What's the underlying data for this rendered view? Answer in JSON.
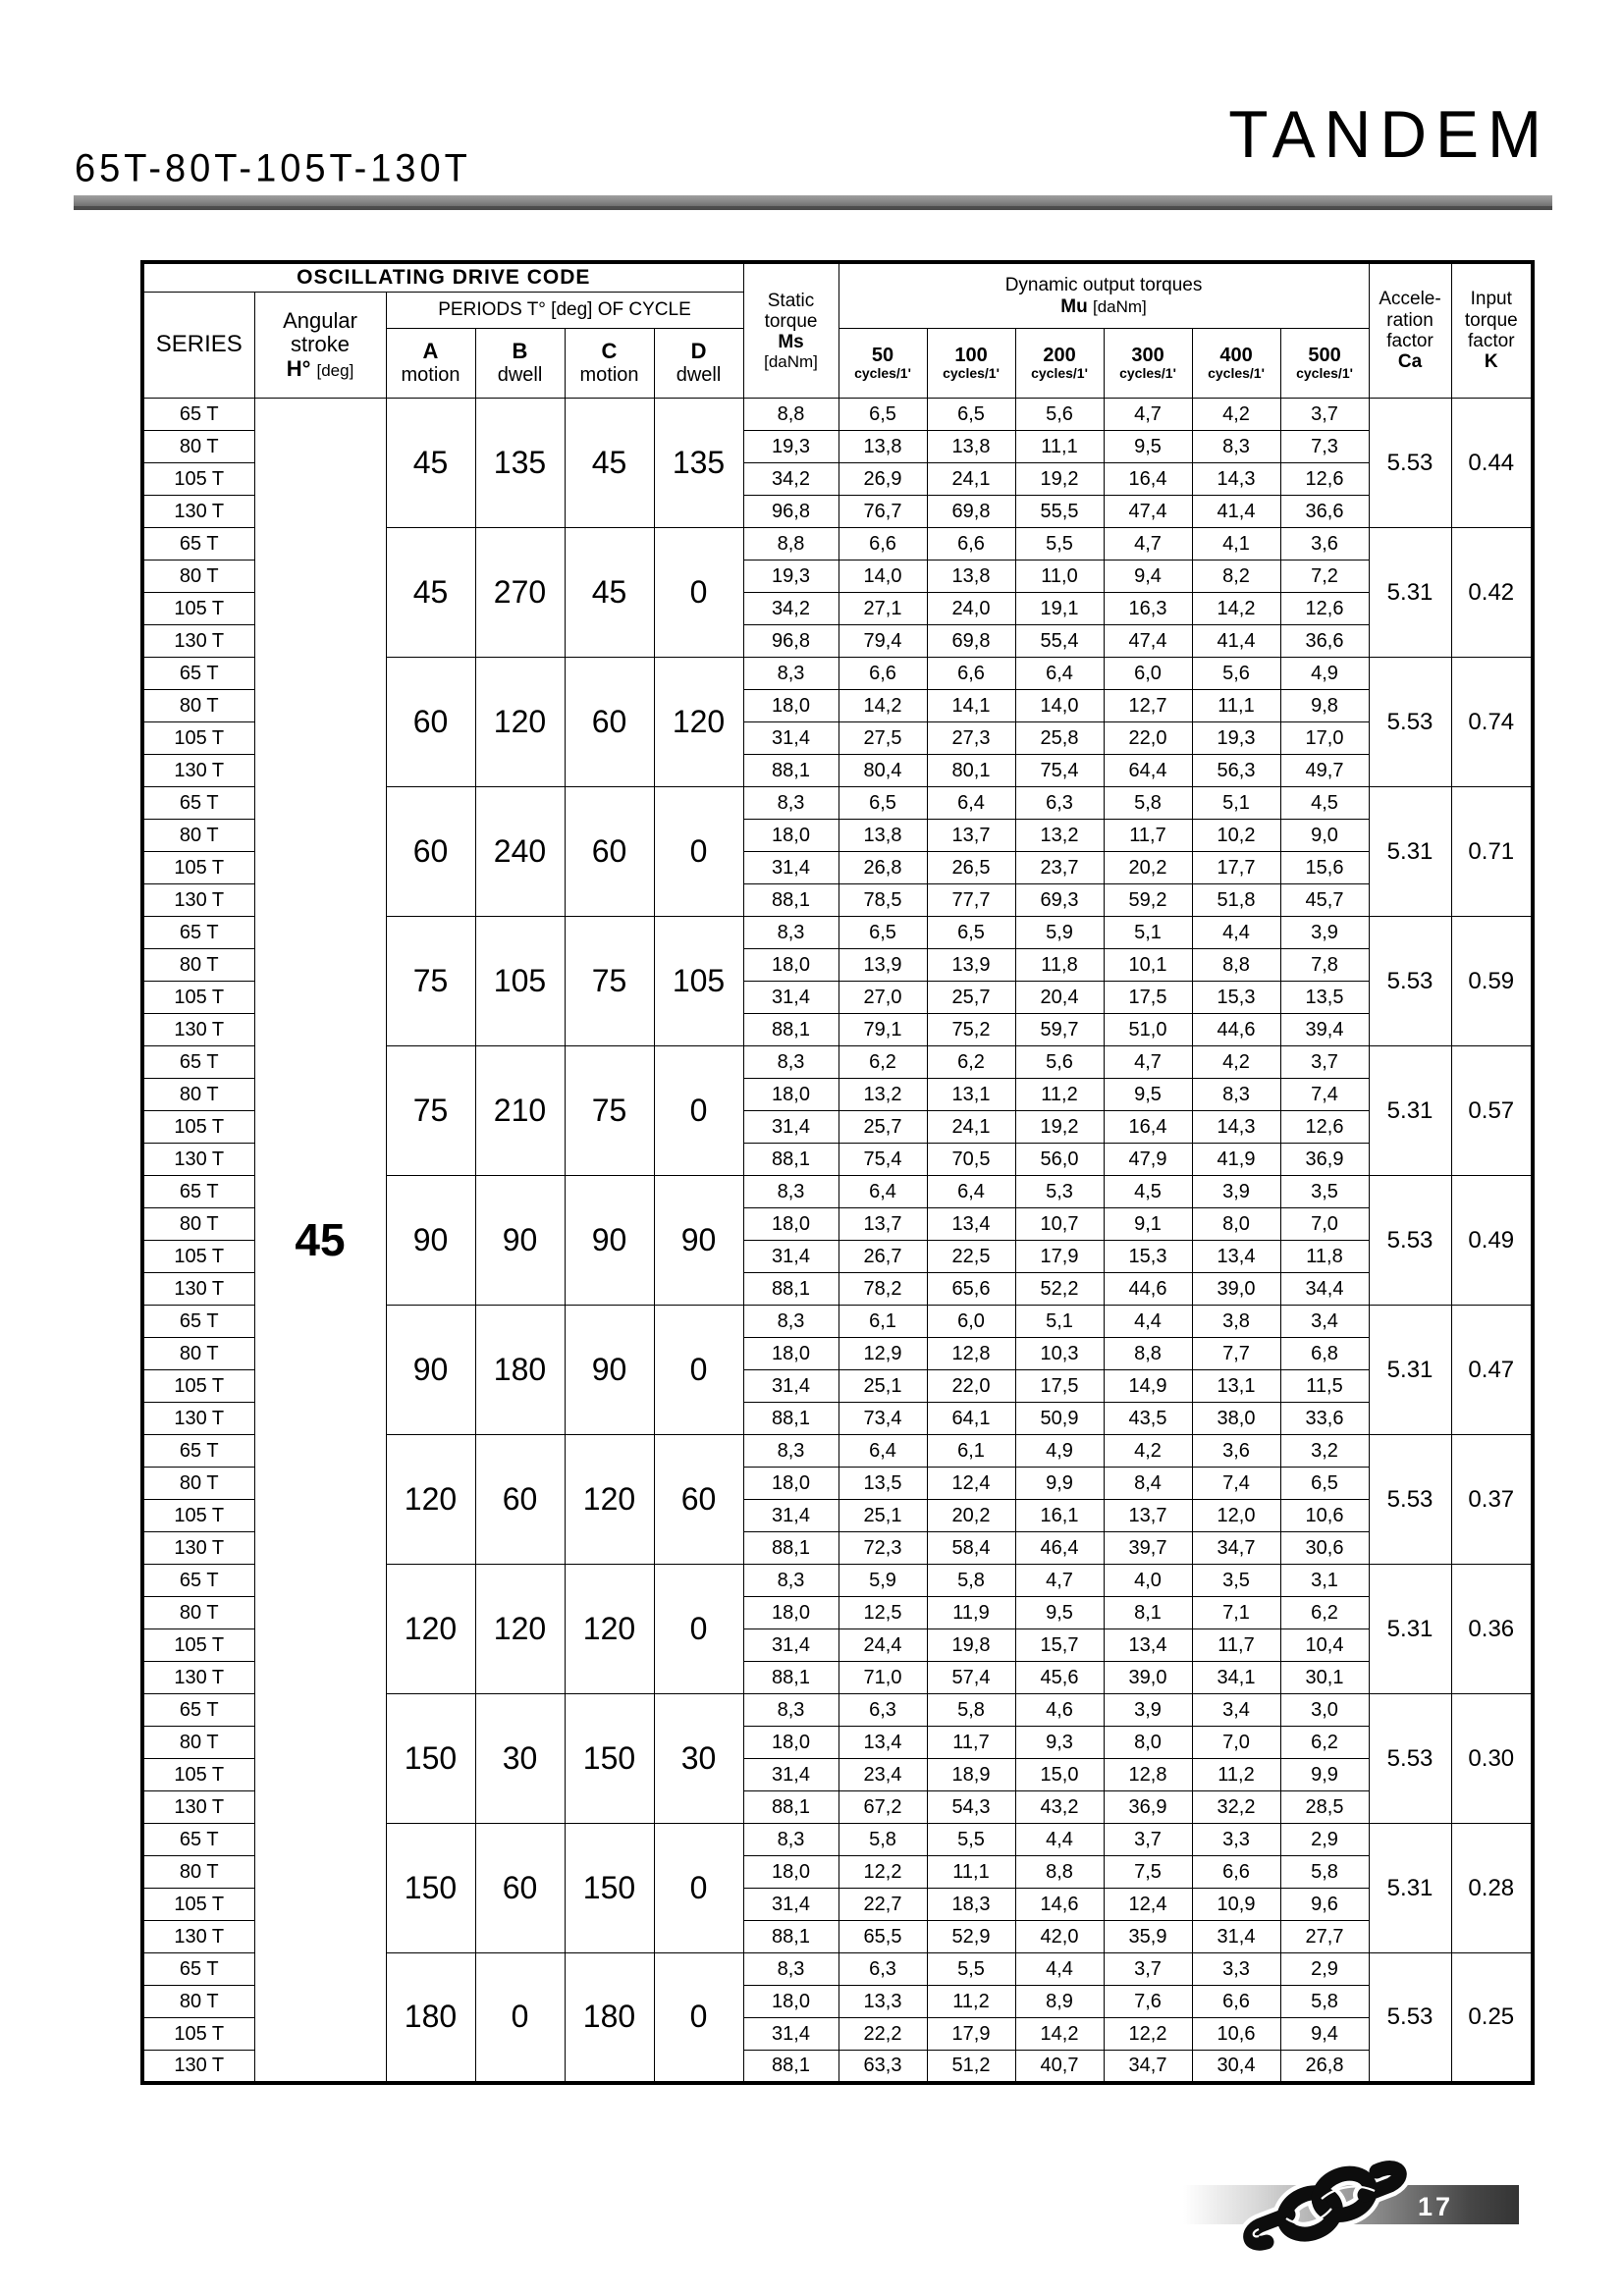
{
  "page": {
    "title": "65T-80T-105T-130T",
    "brand": "TANDEM",
    "page_number": "17"
  },
  "table": {
    "header": {
      "drive_code": "OSCILLATING DRIVE CODE",
      "series": "SERIES",
      "angular_line1": "Angular",
      "angular_line2": "stroke",
      "angular_sym": "H°",
      "angular_unit": "[deg]",
      "periods_label": "PERIODS T° [deg] OF CYCLE",
      "period_columns": [
        {
          "letter": "A",
          "type": "motion"
        },
        {
          "letter": "B",
          "type": "dwell"
        },
        {
          "letter": "C",
          "type": "motion"
        },
        {
          "letter": "D",
          "type": "dwell"
        }
      ],
      "static_line1": "Static",
      "static_line2": "torque",
      "static_sym": "Ms",
      "static_unit": "[daNm]",
      "dynamic_label": "Dynamic output torques",
      "dynamic_sym": "Mu",
      "dynamic_unit": "[daNm]",
      "cycle_speeds": [
        "50",
        "100",
        "200",
        "300",
        "400",
        "500"
      ],
      "cycles_unit": "cycles/1'",
      "accel_line1": "Accele-",
      "accel_line2": "ration",
      "accel_line3": "factor",
      "accel_sym": "Ca",
      "input_line1": "Input",
      "input_line2": "torque",
      "input_line3": "factor",
      "input_sym": "K"
    },
    "angular_stroke_value": "45",
    "series_labels": [
      "65 T",
      "80 T",
      "105 T",
      "130 T"
    ],
    "groups": [
      {
        "periods": [
          "45",
          "135",
          "45",
          "135"
        ],
        "ca": "5.53",
        "k": "0.44",
        "rows": [
          [
            "8,8",
            "6,5",
            "6,5",
            "5,6",
            "4,7",
            "4,2",
            "3,7"
          ],
          [
            "19,3",
            "13,8",
            "13,8",
            "11,1",
            "9,5",
            "8,3",
            "7,3"
          ],
          [
            "34,2",
            "26,9",
            "24,1",
            "19,2",
            "16,4",
            "14,3",
            "12,6"
          ],
          [
            "96,8",
            "76,7",
            "69,8",
            "55,5",
            "47,4",
            "41,4",
            "36,6"
          ]
        ]
      },
      {
        "periods": [
          "45",
          "270",
          "45",
          "0"
        ],
        "ca": "5.31",
        "k": "0.42",
        "rows": [
          [
            "8,8",
            "6,6",
            "6,6",
            "5,5",
            "4,7",
            "4,1",
            "3,6"
          ],
          [
            "19,3",
            "14,0",
            "13,8",
            "11,0",
            "9,4",
            "8,2",
            "7,2"
          ],
          [
            "34,2",
            "27,1",
            "24,0",
            "19,1",
            "16,3",
            "14,2",
            "12,6"
          ],
          [
            "96,8",
            "79,4",
            "69,8",
            "55,4",
            "47,4",
            "41,4",
            "36,6"
          ]
        ]
      },
      {
        "periods": [
          "60",
          "120",
          "60",
          "120"
        ],
        "ca": "5.53",
        "k": "0.74",
        "rows": [
          [
            "8,3",
            "6,6",
            "6,6",
            "6,4",
            "6,0",
            "5,6",
            "4,9"
          ],
          [
            "18,0",
            "14,2",
            "14,1",
            "14,0",
            "12,7",
            "11,1",
            "9,8"
          ],
          [
            "31,4",
            "27,5",
            "27,3",
            "25,8",
            "22,0",
            "19,3",
            "17,0"
          ],
          [
            "88,1",
            "80,4",
            "80,1",
            "75,4",
            "64,4",
            "56,3",
            "49,7"
          ]
        ]
      },
      {
        "periods": [
          "60",
          "240",
          "60",
          "0"
        ],
        "ca": "5.31",
        "k": "0.71",
        "rows": [
          [
            "8,3",
            "6,5",
            "6,4",
            "6,3",
            "5,8",
            "5,1",
            "4,5"
          ],
          [
            "18,0",
            "13,8",
            "13,7",
            "13,2",
            "11,7",
            "10,2",
            "9,0"
          ],
          [
            "31,4",
            "26,8",
            "26,5",
            "23,7",
            "20,2",
            "17,7",
            "15,6"
          ],
          [
            "88,1",
            "78,5",
            "77,7",
            "69,3",
            "59,2",
            "51,8",
            "45,7"
          ]
        ]
      },
      {
        "periods": [
          "75",
          "105",
          "75",
          "105"
        ],
        "ca": "5.53",
        "k": "0.59",
        "rows": [
          [
            "8,3",
            "6,5",
            "6,5",
            "5,9",
            "5,1",
            "4,4",
            "3,9"
          ],
          [
            "18,0",
            "13,9",
            "13,9",
            "11,8",
            "10,1",
            "8,8",
            "7,8"
          ],
          [
            "31,4",
            "27,0",
            "25,7",
            "20,4",
            "17,5",
            "15,3",
            "13,5"
          ],
          [
            "88,1",
            "79,1",
            "75,2",
            "59,7",
            "51,0",
            "44,6",
            "39,4"
          ]
        ]
      },
      {
        "periods": [
          "75",
          "210",
          "75",
          "0"
        ],
        "ca": "5.31",
        "k": "0.57",
        "rows": [
          [
            "8,3",
            "6,2",
            "6,2",
            "5,6",
            "4,7",
            "4,2",
            "3,7"
          ],
          [
            "18,0",
            "13,2",
            "13,1",
            "11,2",
            "9,5",
            "8,3",
            "7,4"
          ],
          [
            "31,4",
            "25,7",
            "24,1",
            "19,2",
            "16,4",
            "14,3",
            "12,6"
          ],
          [
            "88,1",
            "75,4",
            "70,5",
            "56,0",
            "47,9",
            "41,9",
            "36,9"
          ]
        ]
      },
      {
        "periods": [
          "90",
          "90",
          "90",
          "90"
        ],
        "ca": "5.53",
        "k": "0.49",
        "rows": [
          [
            "8,3",
            "6,4",
            "6,4",
            "5,3",
            "4,5",
            "3,9",
            "3,5"
          ],
          [
            "18,0",
            "13,7",
            "13,4",
            "10,7",
            "9,1",
            "8,0",
            "7,0"
          ],
          [
            "31,4",
            "26,7",
            "22,5",
            "17,9",
            "15,3",
            "13,4",
            "11,8"
          ],
          [
            "88,1",
            "78,2",
            "65,6",
            "52,2",
            "44,6",
            "39,0",
            "34,4"
          ]
        ]
      },
      {
        "periods": [
          "90",
          "180",
          "90",
          "0"
        ],
        "ca": "5.31",
        "k": "0.47",
        "rows": [
          [
            "8,3",
            "6,1",
            "6,0",
            "5,1",
            "4,4",
            "3,8",
            "3,4"
          ],
          [
            "18,0",
            "12,9",
            "12,8",
            "10,3",
            "8,8",
            "7,7",
            "6,8"
          ],
          [
            "31,4",
            "25,1",
            "22,0",
            "17,5",
            "14,9",
            "13,1",
            "11,5"
          ],
          [
            "88,1",
            "73,4",
            "64,1",
            "50,9",
            "43,5",
            "38,0",
            "33,6"
          ]
        ]
      },
      {
        "periods": [
          "120",
          "60",
          "120",
          "60"
        ],
        "ca": "5.53",
        "k": "0.37",
        "rows": [
          [
            "8,3",
            "6,4",
            "6,1",
            "4,9",
            "4,2",
            "3,6",
            "3,2"
          ],
          [
            "18,0",
            "13,5",
            "12,4",
            "9,9",
            "8,4",
            "7,4",
            "6,5"
          ],
          [
            "31,4",
            "25,1",
            "20,2",
            "16,1",
            "13,7",
            "12,0",
            "10,6"
          ],
          [
            "88,1",
            "72,3",
            "58,4",
            "46,4",
            "39,7",
            "34,7",
            "30,6"
          ]
        ]
      },
      {
        "periods": [
          "120",
          "120",
          "120",
          "0"
        ],
        "ca": "5.31",
        "k": "0.36",
        "rows": [
          [
            "8,3",
            "5,9",
            "5,8",
            "4,7",
            "4,0",
            "3,5",
            "3,1"
          ],
          [
            "18,0",
            "12,5",
            "11,9",
            "9,5",
            "8,1",
            "7,1",
            "6,2"
          ],
          [
            "31,4",
            "24,4",
            "19,8",
            "15,7",
            "13,4",
            "11,7",
            "10,4"
          ],
          [
            "88,1",
            "71,0",
            "57,4",
            "45,6",
            "39,0",
            "34,1",
            "30,1"
          ]
        ]
      },
      {
        "periods": [
          "150",
          "30",
          "150",
          "30"
        ],
        "ca": "5.53",
        "k": "0.30",
        "rows": [
          [
            "8,3",
            "6,3",
            "5,8",
            "4,6",
            "3,9",
            "3,4",
            "3,0"
          ],
          [
            "18,0",
            "13,4",
            "11,7",
            "9,3",
            "8,0",
            "7,0",
            "6,2"
          ],
          [
            "31,4",
            "23,4",
            "18,9",
            "15,0",
            "12,8",
            "11,2",
            "9,9"
          ],
          [
            "88,1",
            "67,2",
            "54,3",
            "43,2",
            "36,9",
            "32,2",
            "28,5"
          ]
        ]
      },
      {
        "periods": [
          "150",
          "60",
          "150",
          "0"
        ],
        "ca": "5.31",
        "k": "0.28",
        "rows": [
          [
            "8,3",
            "5,8",
            "5,5",
            "4,4",
            "3,7",
            "3,3",
            "2,9"
          ],
          [
            "18,0",
            "12,2",
            "11,1",
            "8,8",
            "7,5",
            "6,6",
            "5,8"
          ],
          [
            "31,4",
            "22,7",
            "18,3",
            "14,6",
            "12,4",
            "10,9",
            "9,6"
          ],
          [
            "88,1",
            "65,5",
            "52,9",
            "42,0",
            "35,9",
            "31,4",
            "27,7"
          ]
        ]
      },
      {
        "periods": [
          "180",
          "0",
          "180",
          "0"
        ],
        "ca": "5.53",
        "k": "0.25",
        "rows": [
          [
            "8,3",
            "6,3",
            "5,5",
            "4,4",
            "3,7",
            "3,3",
            "2,9"
          ],
          [
            "18,0",
            "13,3",
            "11,2",
            "8,9",
            "7,6",
            "6,6",
            "5,8"
          ],
          [
            "31,4",
            "22,2",
            "17,9",
            "14,2",
            "12,2",
            "10,6",
            "9,4"
          ],
          [
            "88,1",
            "63,3",
            "51,2",
            "40,7",
            "34,7",
            "30,4",
            "26,8"
          ]
        ]
      }
    ]
  }
}
